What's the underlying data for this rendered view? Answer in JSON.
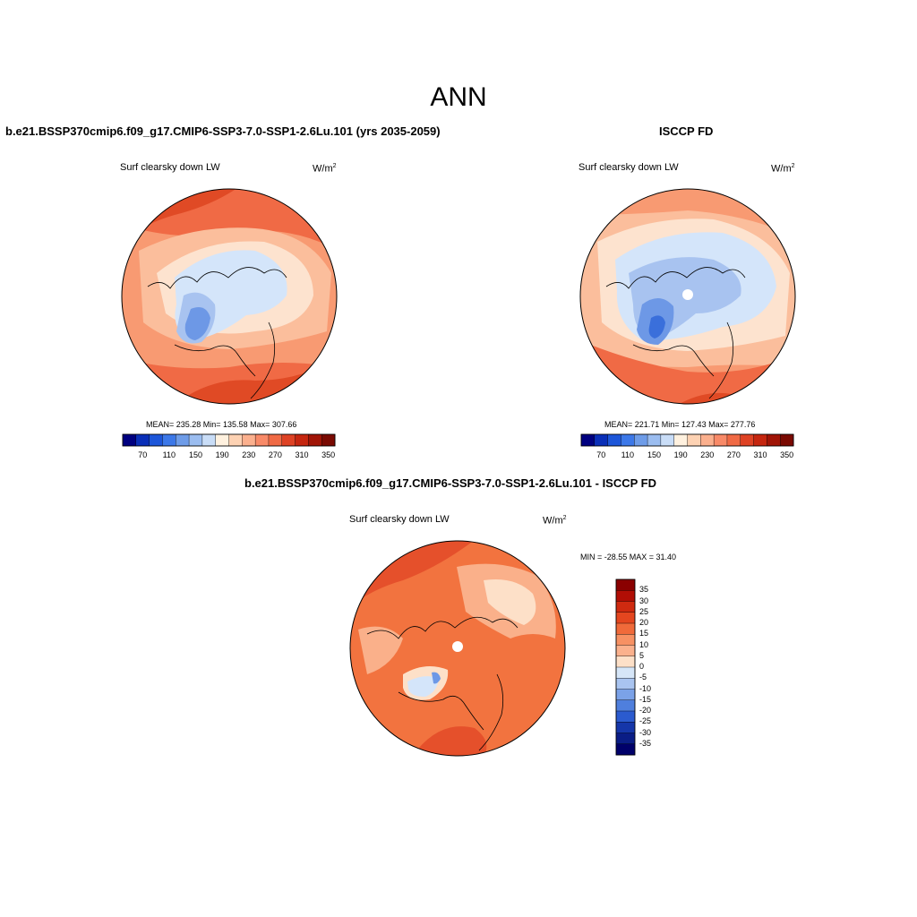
{
  "figure": {
    "title": "ANN"
  },
  "panels": {
    "model": {
      "case": "b.e21.BSSP370cmip6.f09_g17.CMIP6-SSP3-7.0-SSP1-2.6Lu.101 (yrs 2035-2059)",
      "variable": "Surf clearsky down LW",
      "units": "W/m",
      "units_exp": "2",
      "stats": "MEAN= 235.28  Min= 135.58  Max= 307.66"
    },
    "obs": {
      "case": "ISCCP FD",
      "variable": "Surf clearsky down LW",
      "units": "W/m",
      "units_exp": "2",
      "stats": "MEAN= 221.71  Min= 127.43  Max= 277.76"
    },
    "diff": {
      "case": "b.e21.BSSP370cmip6.f09_g17.CMIP6-SSP3-7.0-SSP1-2.6Lu.101 - ISCCP FD",
      "variable": "Surf clearsky down LW",
      "units": "W/m",
      "units_exp": "2",
      "stats": "MIN = -28.55 MAX =  31.40"
    }
  },
  "colorbar_abs": {
    "labels": [
      "70",
      "110",
      "150",
      "190",
      "230",
      "270",
      "310",
      "350"
    ],
    "colors": [
      "#000080",
      "#0a2fb8",
      "#1d56d9",
      "#3c78e8",
      "#6e9ce8",
      "#9bbdf0",
      "#c9ddf7",
      "#fff1df",
      "#fdd2b3",
      "#fbb08e",
      "#f88a68",
      "#f06a45",
      "#de4224",
      "#c5260f",
      "#a01406",
      "#7a0a02"
    ]
  },
  "colorbar_diff": {
    "labels": [
      "35",
      "30",
      "25",
      "20",
      "15",
      "10",
      "5",
      "0",
      "-5",
      "-10",
      "-15",
      "-20",
      "-25",
      "-30",
      "-35"
    ],
    "colors": [
      "#8a0000",
      "#b10e05",
      "#cf2a10",
      "#e4461f",
      "#f06a3a",
      "#f79163",
      "#fbb18d",
      "#fde0c8",
      "#d6e6f8",
      "#a9c4f0",
      "#7ba2e8",
      "#4f7fdd",
      "#2b5bcf",
      "#1536a9",
      "#0a1d86",
      "#00006a"
    ]
  },
  "map_colors": {
    "very_high": "#e04a25",
    "high": "#f06a45",
    "mid": "#f89a72",
    "low": "#fbbe9c",
    "pale": "#fde3cf",
    "ice_light": "#d4e5fa",
    "ice_mid": "#a8c3f0",
    "ice_deep": "#6d98e6",
    "ice_core": "#3a6fdb",
    "diff_base": "#f2733f",
    "diff_high": "#e5502b",
    "diff_light": "#fab08a",
    "diff_pale": "#fde0c8"
  }
}
